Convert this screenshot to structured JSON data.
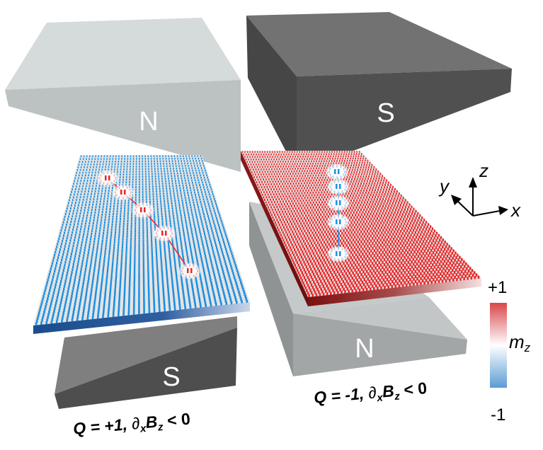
{
  "magnets": {
    "top_left_label": "N",
    "top_right_label": "S",
    "bottom_left_label": "S",
    "bottom_right_label": "N"
  },
  "captions": {
    "left": {
      "q": "Q = +1, ",
      "d": "∂",
      "dsub": "x",
      "b": "B",
      "bsub": "z",
      "rest": " < 0"
    },
    "right": {
      "q": "Q = -1, ",
      "d": "∂",
      "dsub": "x",
      "b": "B",
      "bsub": "z",
      "rest": " < 0"
    }
  },
  "axes": {
    "x": "x",
    "y": "y",
    "z": "z"
  },
  "colorbar": {
    "max_label": "+1",
    "min_label": "-1",
    "label": "m",
    "label_sub": "z",
    "max_color": "#d9474c",
    "mid_color": "#ffffff",
    "min_color": "#5b9bd5"
  },
  "plates": {
    "left": {
      "background_spin_color": "#1f8fe0",
      "core_color": "#e8282a",
      "skyrmion_count": 5
    },
    "right": {
      "background_spin_color": "#e8282a",
      "core_color": "#1f8fe0",
      "skyrmion_count": 5
    }
  }
}
